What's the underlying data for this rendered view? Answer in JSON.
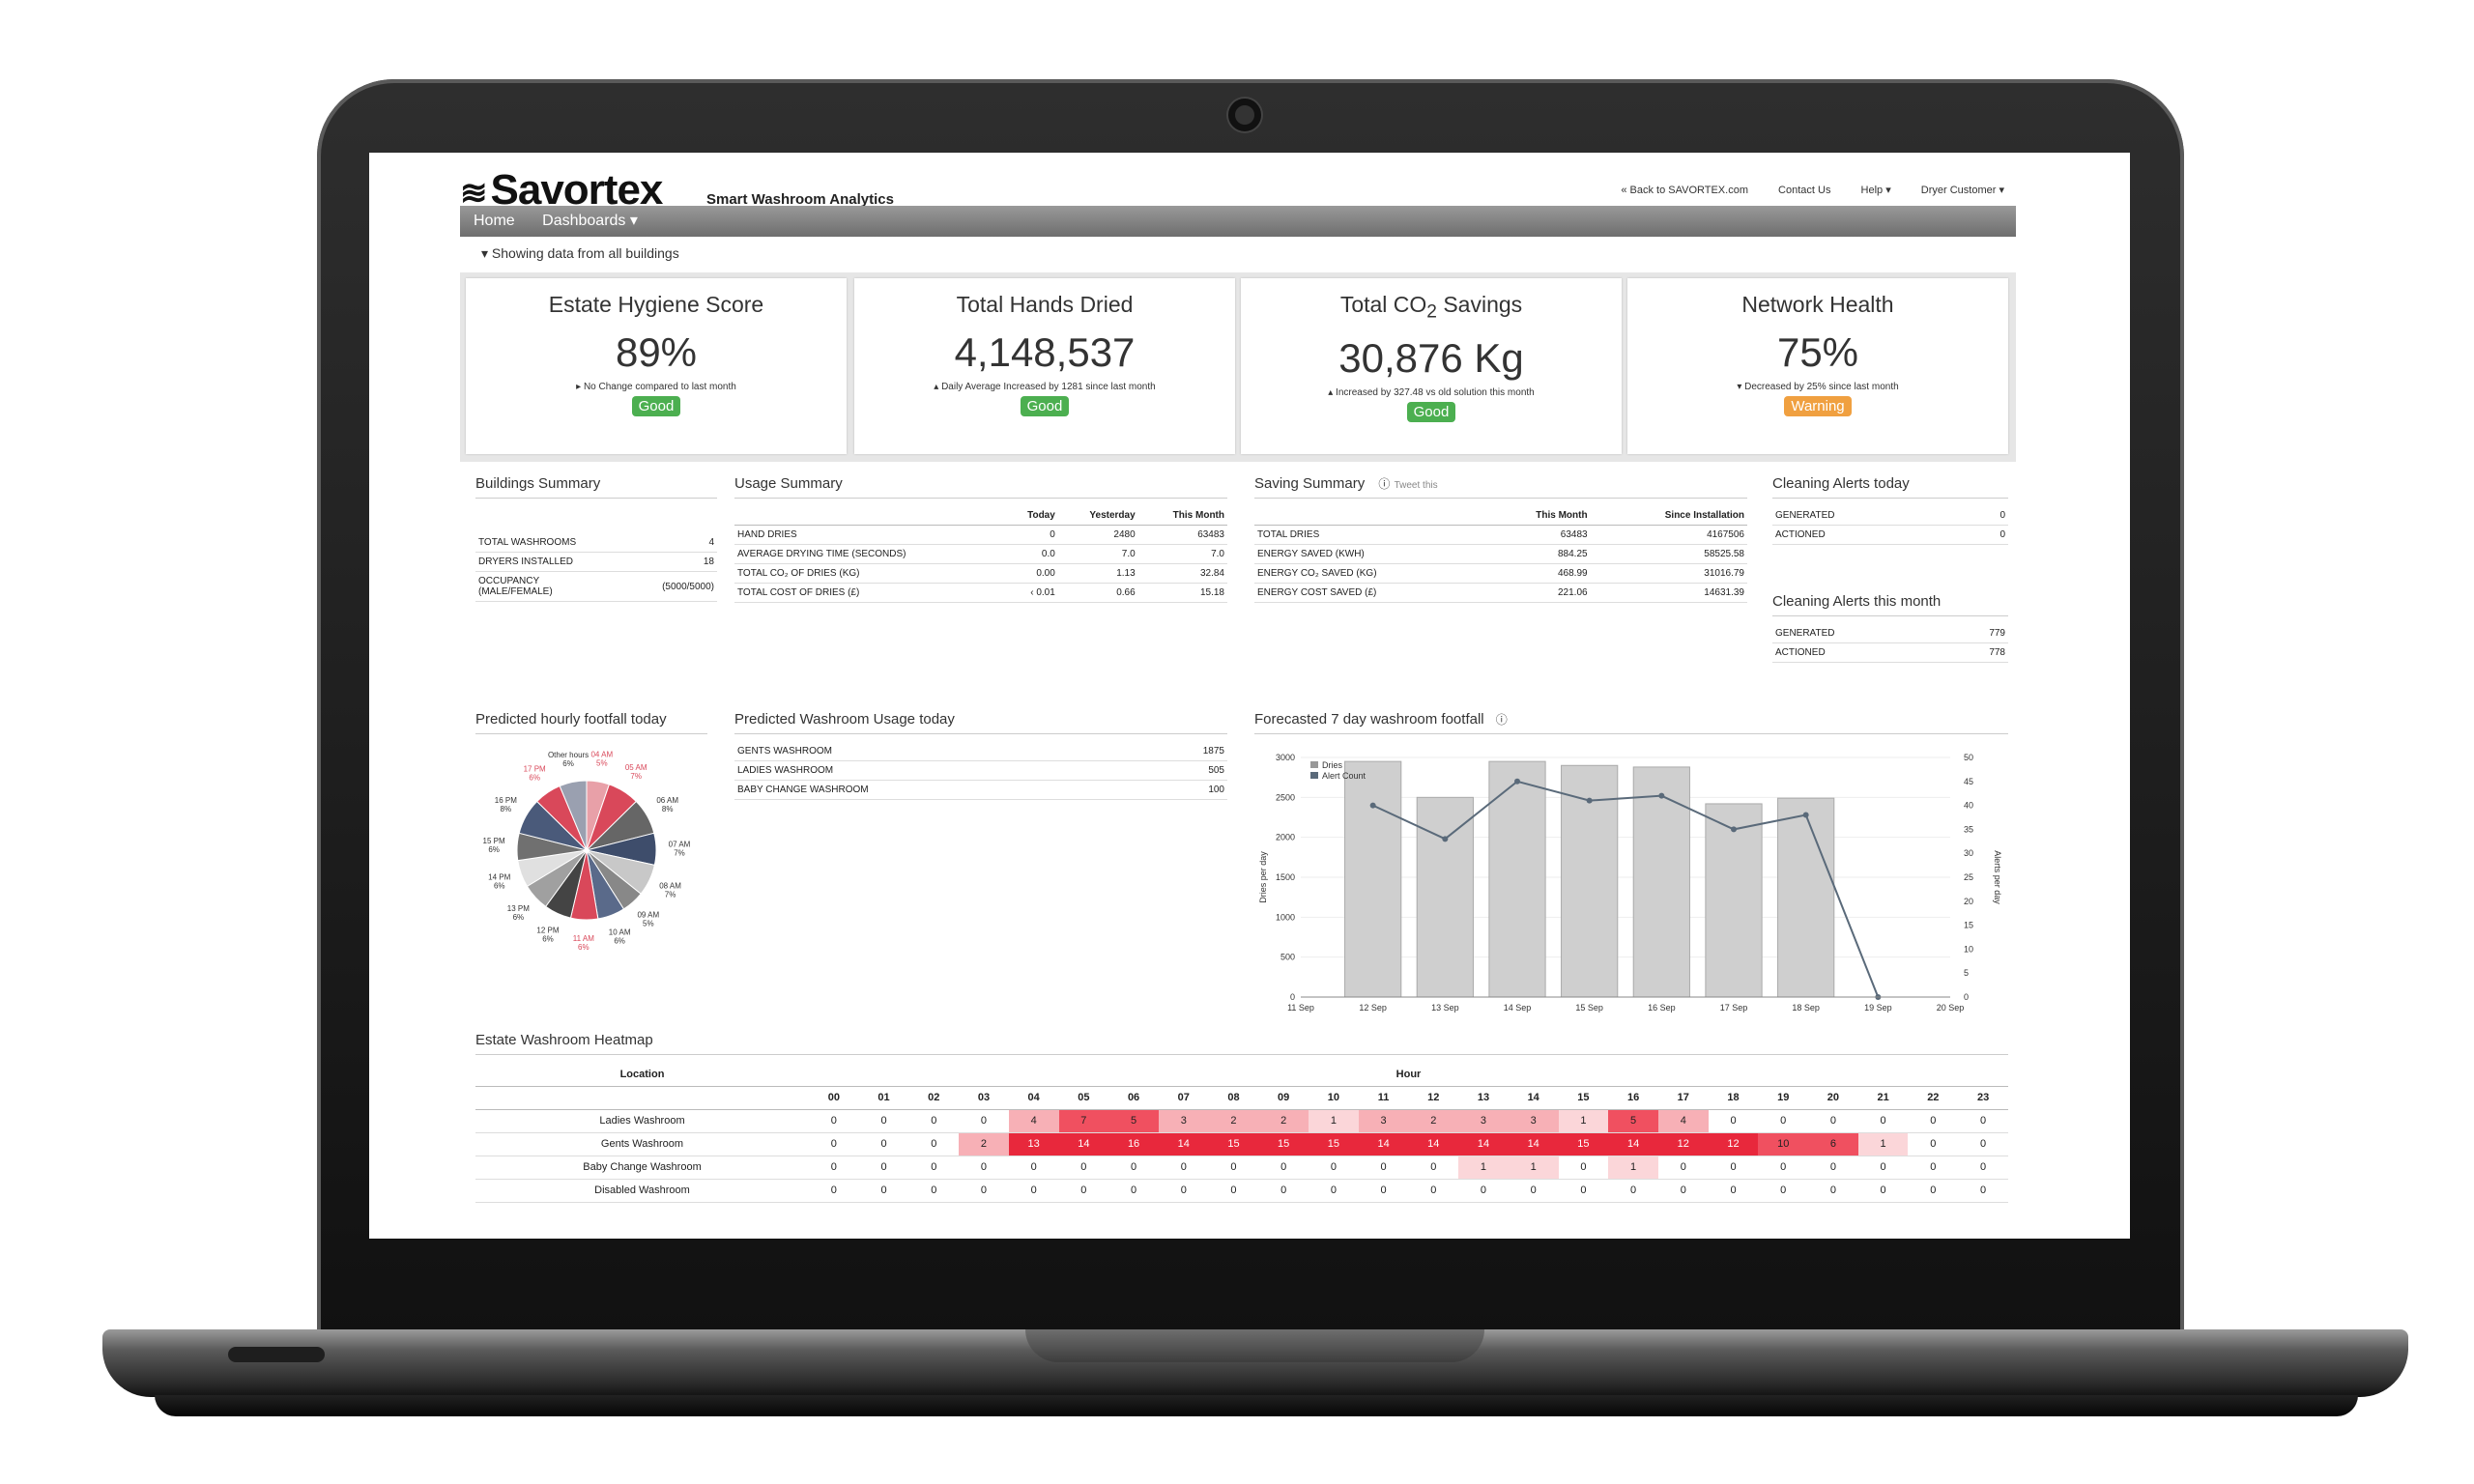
{
  "header": {
    "logo": "Savortex",
    "tagline": "Smart Washroom Analytics",
    "links": [
      "« Back to SAVORTEX.com",
      "Contact Us",
      "Help ▾",
      "Dryer Customer ▾"
    ]
  },
  "nav": {
    "items": [
      "Home",
      "Dashboards ▾"
    ]
  },
  "scope_text": "▾ Showing data from all buildings",
  "kpis": [
    {
      "title": "Estate Hygiene Score",
      "value": "89%",
      "sub": "▸ No Change compared to last month",
      "badge": "Good",
      "badge_color": "#4caf50",
      "arrow_color": "#222"
    },
    {
      "title": "Total Hands Dried",
      "value": "4,148,537",
      "sub": "▴ Daily Average Increased by 1281 since last month",
      "badge": "Good",
      "badge_color": "#4caf50",
      "arrow_color": "#4caf50"
    },
    {
      "title": "Total CO",
      "title_sub": "2",
      "title_after": " Savings",
      "value": "30,876 Kg",
      "sub": "▴ Increased by 327.48 vs old solution this month",
      "badge": "Good",
      "badge_color": "#4caf50",
      "arrow_color": "#4caf50"
    },
    {
      "title": "Network Health",
      "value": "75%",
      "sub": "▾ Decreased by 25% since last month",
      "badge": "Warning",
      "badge_color": "#f0a040",
      "arrow_color": "#d33"
    }
  ],
  "buildings": {
    "title": "Buildings Summary",
    "rows": [
      [
        "TOTAL WASHROOMS",
        "4"
      ],
      [
        "DRYERS INSTALLED",
        "18"
      ],
      [
        "OCCUPANCY (MALE/FEMALE)",
        "(5000/5000)"
      ]
    ]
  },
  "usage": {
    "title": "Usage Summary",
    "cols": [
      "Today",
      "Yesterday",
      "This Month"
    ],
    "rows": [
      [
        "HAND DRIES",
        "0",
        "2480",
        "63483"
      ],
      [
        "AVERAGE DRYING TIME (SECONDS)",
        "0.0",
        "7.0",
        "7.0"
      ],
      [
        "TOTAL CO₂ OF DRIES (KG)",
        "0.00",
        "1.13",
        "32.84"
      ],
      [
        "TOTAL COST OF DRIES (£)",
        "‹ 0.01",
        "0.66",
        "15.18"
      ]
    ]
  },
  "saving": {
    "title": "Saving Summary",
    "tweet": "Tweet this",
    "cols": [
      "This Month",
      "Since Installation"
    ],
    "rows": [
      [
        "TOTAL DRIES",
        "63483",
        "4167506"
      ],
      [
        "ENERGY SAVED (KWH)",
        "884.25",
        "58525.58"
      ],
      [
        "ENERGY CO₂ SAVED (KG)",
        "468.99",
        "31016.79"
      ],
      [
        "ENERGY COST SAVED (£)",
        "221.06",
        "14631.39"
      ]
    ]
  },
  "alerts_today": {
    "title": "Cleaning Alerts today",
    "rows": [
      [
        "GENERATED",
        "0"
      ],
      [
        "ACTIONED",
        "0"
      ]
    ]
  },
  "alerts_month": {
    "title": "Cleaning Alerts this month",
    "rows": [
      [
        "GENERATED",
        "779"
      ],
      [
        "ACTIONED",
        "778"
      ]
    ]
  },
  "footfall_pie": {
    "title": "Predicted hourly footfall today",
    "chart_data": {
      "type": "pie",
      "slices": [
        {
          "label": "04 AM",
          "pct": "5%",
          "value": 5,
          "color": "#e8a0a8"
        },
        {
          "label": "05 AM",
          "pct": "7%",
          "value": 7,
          "color": "#d9485a"
        },
        {
          "label": "06 AM",
          "pct": "8%",
          "value": 8,
          "color": "#666666"
        },
        {
          "label": "07 AM",
          "pct": "7%",
          "value": 7,
          "color": "#3e4d6b"
        },
        {
          "label": "08 AM",
          "pct": "7%",
          "value": 7,
          "color": "#c8c8c8"
        },
        {
          "label": "09 AM",
          "pct": "5%",
          "value": 5,
          "color": "#888888"
        },
        {
          "label": "10 AM",
          "pct": "6%",
          "value": 6,
          "color": "#5a6a8a"
        },
        {
          "label": "11 AM",
          "pct": "6%",
          "value": 6,
          "color": "#d9485a"
        },
        {
          "label": "12 PM",
          "pct": "6%",
          "value": 6,
          "color": "#444444"
        },
        {
          "label": "13 PM",
          "pct": "6%",
          "value": 6,
          "color": "#a0a0a0"
        },
        {
          "label": "14 PM",
          "pct": "6%",
          "value": 6,
          "color": "#e0e0e0"
        },
        {
          "label": "15 PM",
          "pct": "6%",
          "value": 6,
          "color": "#707070"
        },
        {
          "label": "16 PM",
          "pct": "8%",
          "value": 8,
          "color": "#4a5a7a"
        },
        {
          "label": "17 PM",
          "pct": "6%",
          "value": 6,
          "color": "#d9485a"
        },
        {
          "label": "Other hours",
          "pct": "6%",
          "value": 6,
          "color": "#9aa0b0"
        }
      ]
    }
  },
  "washroom_usage": {
    "title": "Predicted Washroom Usage today",
    "rows": [
      [
        "GENTS WASHROOM",
        "1875"
      ],
      [
        "LADIES WASHROOM",
        "505"
      ],
      [
        "BABY CHANGE WASHROOM",
        "100"
      ]
    ]
  },
  "forecast": {
    "title": "Forecasted 7 day washroom footfall",
    "chart_data": {
      "type": "bar",
      "categories": [
        "12 Sep",
        "13 Sep",
        "14 Sep",
        "15 Sep",
        "16 Sep",
        "17 Sep",
        "18 Sep",
        "19 Sep"
      ],
      "x_ticks": [
        "11 Sep",
        "12 Sep",
        "13 Sep",
        "14 Sep",
        "15 Sep",
        "16 Sep",
        "17 Sep",
        "18 Sep",
        "19 Sep",
        "20 Sep"
      ],
      "series": [
        {
          "name": "Dries",
          "type": "bar",
          "values": [
            2950,
            2500,
            2950,
            2900,
            2880,
            2420,
            2490,
            0
          ]
        },
        {
          "name": "Alert Count",
          "type": "line",
          "axis": "right",
          "values": [
            40,
            33,
            45,
            41,
            42,
            35,
            38,
            0
          ]
        }
      ],
      "ylabel": "Dries per day",
      "y2label": "Alerts per day",
      "ylim": [
        0,
        3000
      ],
      "y2lim": [
        0,
        50
      ],
      "yticks": [
        "0",
        "500",
        "1000",
        "1500",
        "2000",
        "2500",
        "3000"
      ],
      "y2ticks": [
        "0",
        "5",
        "10",
        "15",
        "20",
        "25",
        "30",
        "35",
        "40",
        "45",
        "50"
      ]
    }
  },
  "heatmap": {
    "title": "Estate Washroom Heatmap",
    "location_header": "Location",
    "hour_header": "Hour",
    "hours": [
      "00",
      "01",
      "02",
      "03",
      "04",
      "05",
      "06",
      "07",
      "08",
      "09",
      "10",
      "11",
      "12",
      "13",
      "14",
      "15",
      "16",
      "17",
      "18",
      "19",
      "20",
      "21",
      "22",
      "23"
    ],
    "rows": [
      {
        "name": "Ladies Washroom",
        "values": [
          0,
          0,
          0,
          0,
          4,
          7,
          5,
          3,
          2,
          2,
          1,
          3,
          2,
          3,
          3,
          1,
          5,
          4,
          0,
          0,
          0,
          0,
          0,
          0
        ]
      },
      {
        "name": "Gents Washroom",
        "values": [
          0,
          0,
          0,
          2,
          13,
          14,
          16,
          14,
          15,
          15,
          15,
          14,
          14,
          14,
          14,
          15,
          14,
          12,
          12,
          10,
          6,
          1,
          0,
          0
        ]
      },
      {
        "name": "Baby Change Washroom",
        "values": [
          0,
          0,
          0,
          0,
          0,
          0,
          0,
          0,
          0,
          0,
          0,
          0,
          0,
          1,
          1,
          0,
          1,
          0,
          0,
          0,
          0,
          0,
          0,
          0
        ]
      },
      {
        "name": "Disabled Washroom",
        "values": [
          0,
          0,
          0,
          0,
          0,
          0,
          0,
          0,
          0,
          0,
          0,
          0,
          0,
          0,
          0,
          0,
          0,
          0,
          0,
          0,
          0,
          0,
          0,
          0
        ]
      }
    ]
  }
}
